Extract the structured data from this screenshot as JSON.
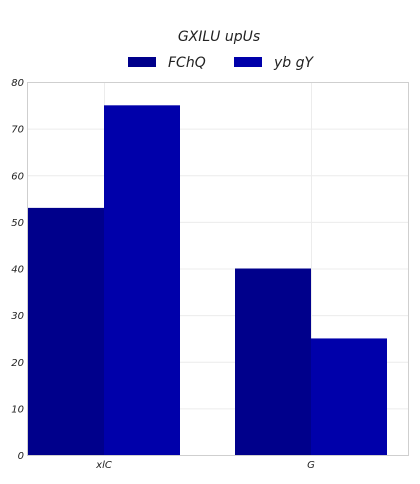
{
  "chart_data": {
    "type": "bar",
    "title": "GXILU upUs",
    "xlabel": "",
    "ylabel": "",
    "categories": [
      "xlC",
      "G"
    ],
    "series": [
      {
        "name": "FChQ",
        "values": [
          53,
          40
        ],
        "color": "#00008b"
      },
      {
        "name": "yb gY",
        "values": [
          75,
          25
        ],
        "color": "#0000aa"
      }
    ],
    "ylim": [
      0,
      80
    ],
    "yticks": [
      0,
      10,
      20,
      30,
      40,
      50,
      60,
      70,
      80
    ],
    "grid": true,
    "legend_position": "top-center"
  }
}
